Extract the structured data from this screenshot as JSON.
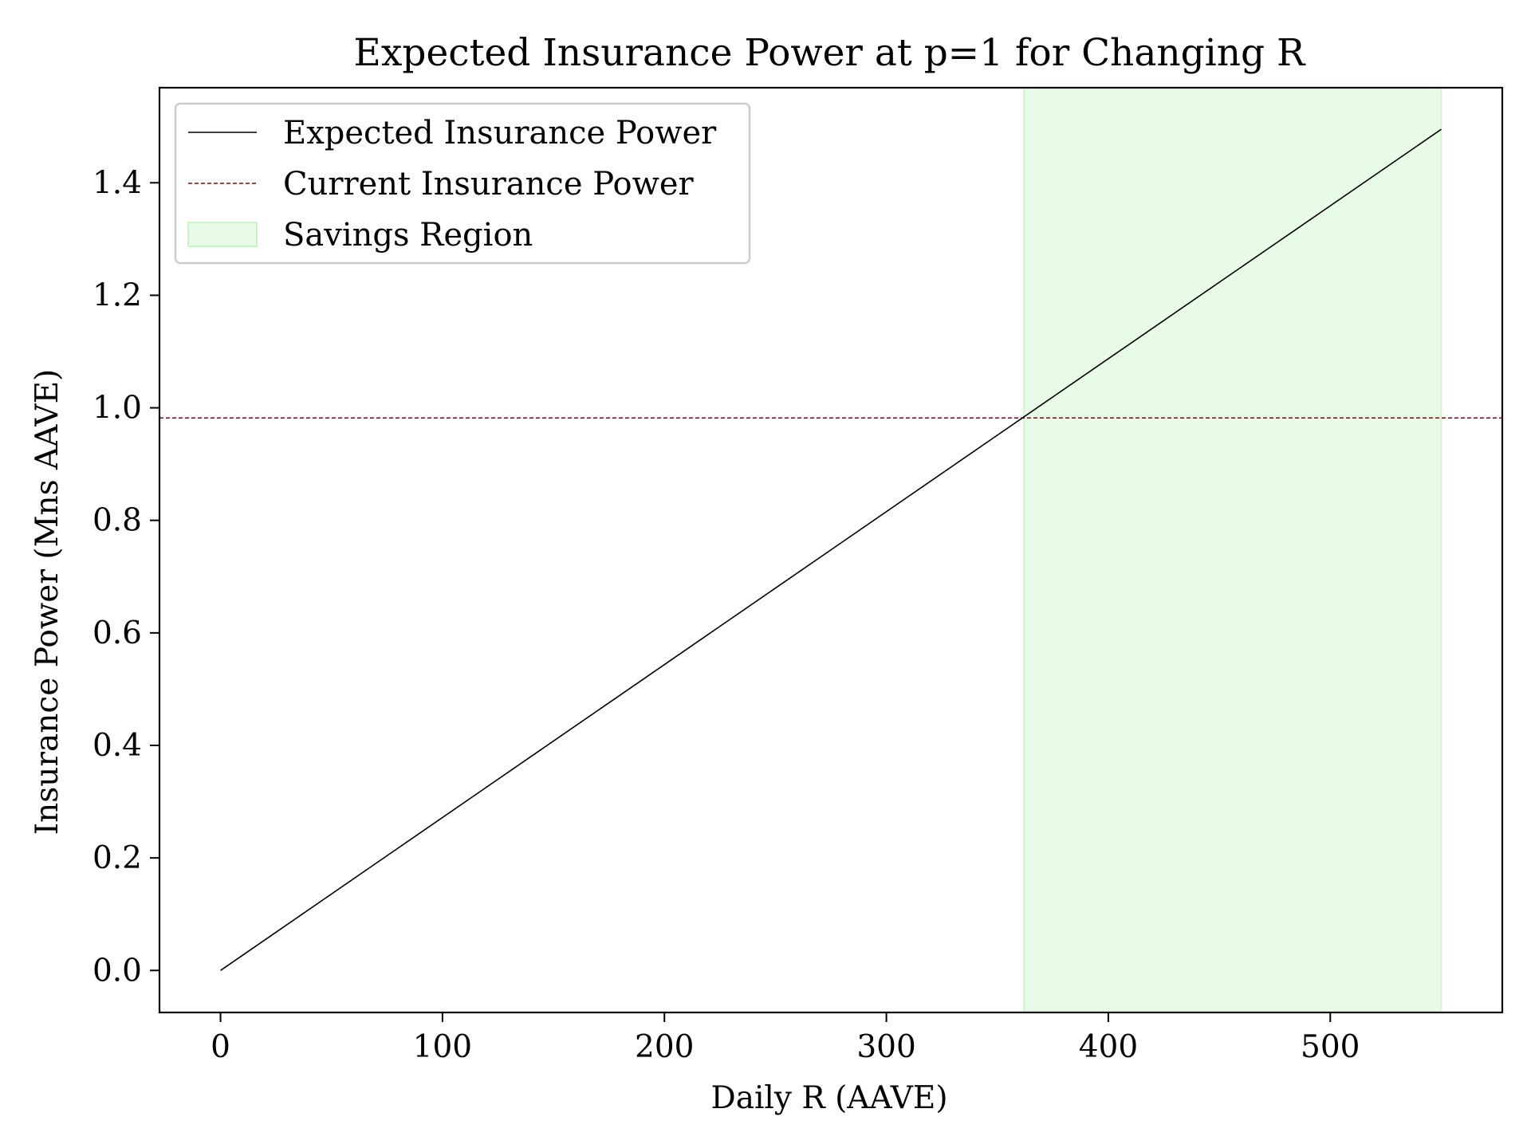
{
  "chart_data": {
    "type": "line",
    "title": "Expected Insurance Power at p=1 for Changing R",
    "xlabel": "Daily R (AAVE)",
    "ylabel": "Insurance Power (Mns AAVE)",
    "xlim": [
      -27.5,
      577.5
    ],
    "ylim": [
      -0.0747,
      1.569
    ],
    "xticks": [
      0,
      100,
      200,
      300,
      400,
      500
    ],
    "xtick_labels": [
      "0",
      "100",
      "200",
      "300",
      "400",
      "500"
    ],
    "yticks": [
      0.0,
      0.2,
      0.4,
      0.6,
      0.8,
      1.0,
      1.2,
      1.4
    ],
    "ytick_labels": [
      "0.0",
      "0.2",
      "0.4",
      "0.6",
      "0.8",
      "1.0",
      "1.2",
      "1.4"
    ],
    "grid": false,
    "legend_position": "top-left",
    "series": [
      {
        "name": "Expected Insurance Power",
        "style": "solid",
        "color": "#000000",
        "x": [
          0,
          550
        ],
        "y": [
          0.0,
          1.495
        ]
      }
    ],
    "hlines": [
      {
        "name": "Current Insurance Power",
        "y": 0.982,
        "style": "dashed",
        "color": "#8b0000"
      }
    ],
    "spans": [
      {
        "name": "Savings Region",
        "x_start": 362,
        "x_end": 550,
        "color": "#90ee90",
        "opacity": 0.22
      }
    ],
    "legend": [
      {
        "label": "Expected Insurance Power",
        "kind": "line",
        "color": "#000000"
      },
      {
        "label": "Current Insurance Power",
        "kind": "dashed",
        "color": "#8b0000"
      },
      {
        "label": "Savings Region",
        "kind": "patch",
        "color": "#90ee90"
      }
    ]
  }
}
